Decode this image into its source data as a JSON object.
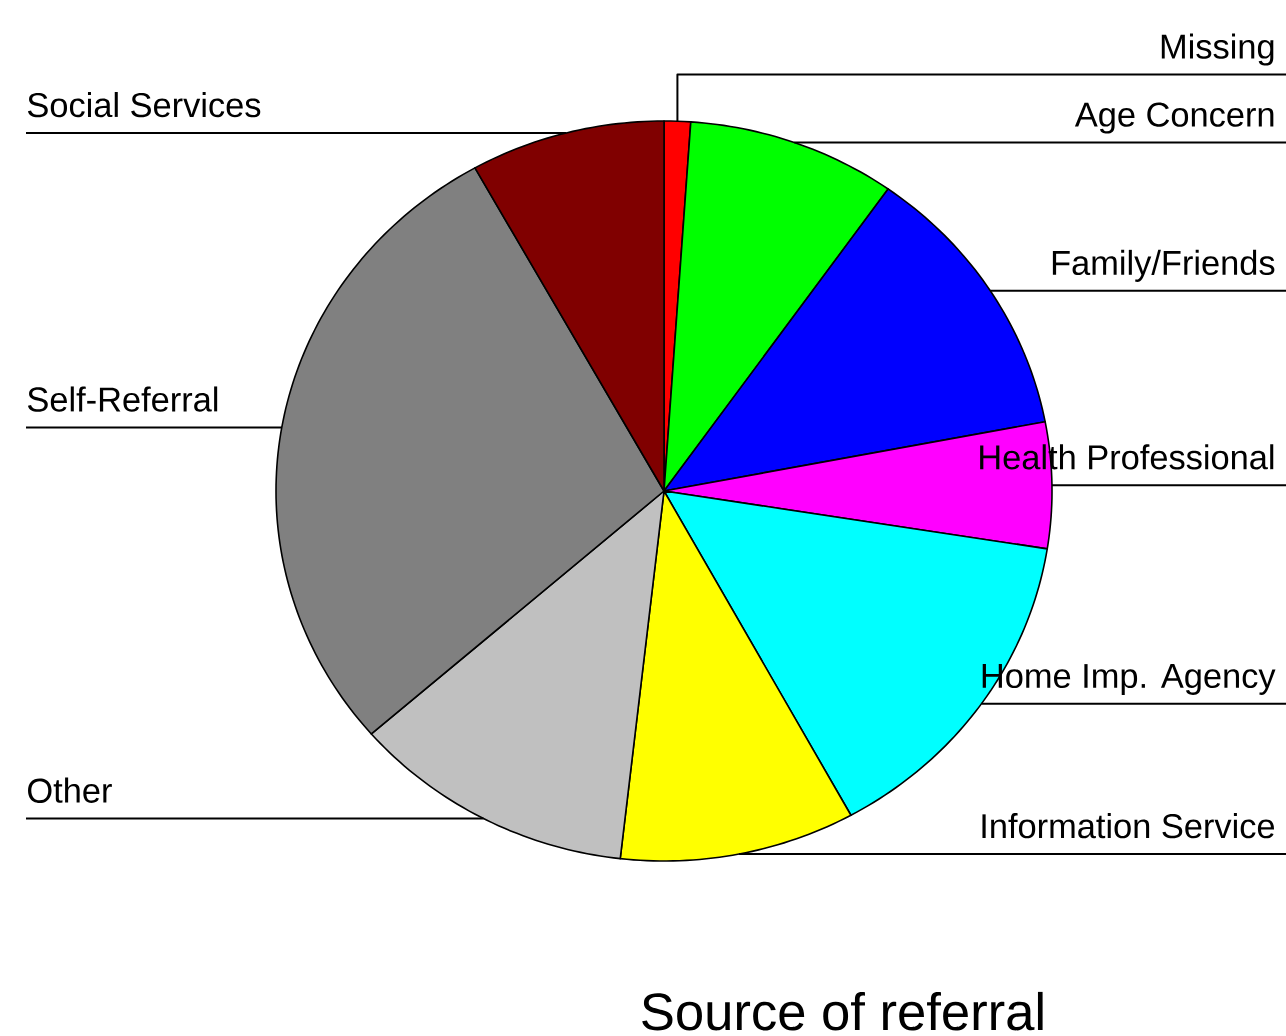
{
  "chart_data": {
    "type": "pie",
    "title": "Source of referral",
    "categories": [
      "Missing",
      "Age Concern",
      "Family/Friends",
      "Health Professional",
      "Home Imp. Agency",
      "Information Service",
      "Other",
      "Self-Referral",
      "Social Services"
    ],
    "values": [
      1.1,
      8.7,
      12.2,
      5.5,
      14.5,
      9.8,
      11.8,
      28.3,
      8.1
    ],
    "colors": [
      "#ff0000",
      "#00ff00",
      "#0000ff",
      "#ff00ff",
      "#00ffff",
      "#ffff00",
      "#c0c0c0",
      "#808080",
      "#800000"
    ]
  }
}
